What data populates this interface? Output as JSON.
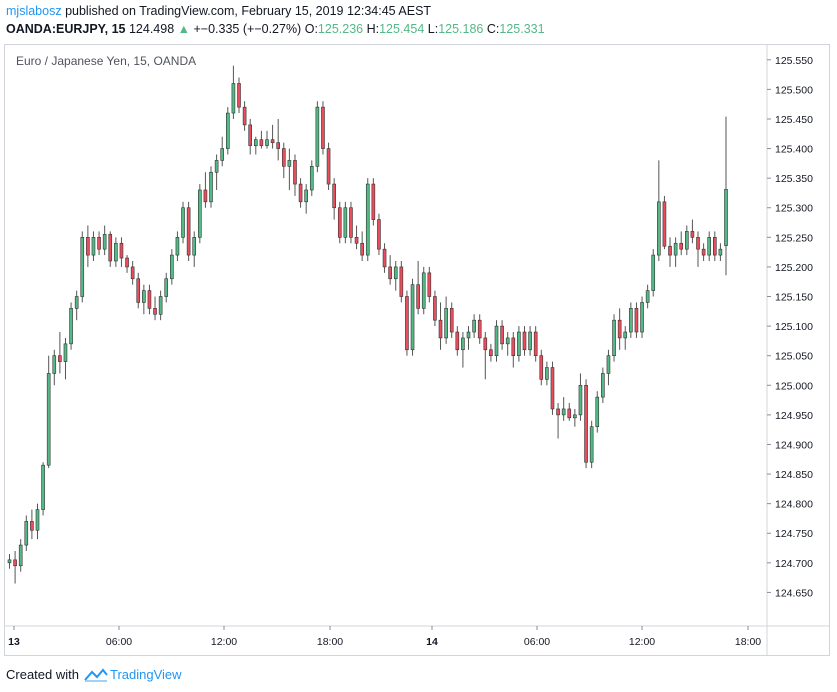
{
  "header": {
    "user": "mjslabosz",
    "published_text": "published on TradingView.com, February 15, 2019 12:34:45 AEST",
    "symbol": "OANDA:EURJPY, 15",
    "last": "124.498",
    "change": "+−0.335 (+−0.27%)",
    "o_label": "O:",
    "o_val": "125.236",
    "h_label": "H:",
    "h_val": "125.454",
    "l_label": "L:",
    "l_val": "125.186",
    "c_label": "C:",
    "c_val": "125.331"
  },
  "footer": {
    "created_with": "Created with",
    "brand": "TradingView"
  },
  "colors": {
    "up": "#53b987",
    "down": "#eb4d5c",
    "wick": "#555555",
    "axis": "#d1d4dc"
  },
  "chart_data": {
    "type": "candlestick",
    "title": "Euro / Japanese Yen, 15, OANDA",
    "ylim": [
      124.6,
      125.575
    ],
    "y_ticks": [
      "125.550",
      "125.500",
      "125.450",
      "125.400",
      "125.350",
      "125.300",
      "125.250",
      "125.200",
      "125.150",
      "125.100",
      "125.050",
      "125.000",
      "124.950",
      "124.900",
      "124.850",
      "124.800",
      "124.750",
      "124.700",
      "124.650"
    ],
    "x_ticks": [
      "13",
      "06:00",
      "12:00",
      "18:00",
      "14",
      "06:00",
      "12:00",
      "18:00"
    ],
    "candles": [
      [
        124.7,
        124.715,
        124.69,
        124.705
      ],
      [
        124.705,
        124.72,
        124.665,
        124.695
      ],
      [
        124.695,
        124.74,
        124.685,
        124.73
      ],
      [
        124.73,
        124.78,
        124.72,
        124.77
      ],
      [
        124.77,
        124.79,
        124.74,
        124.755
      ],
      [
        124.755,
        124.8,
        124.74,
        124.79
      ],
      [
        124.79,
        124.87,
        124.78,
        124.865
      ],
      [
        124.865,
        125.05,
        124.86,
        125.02
      ],
      [
        125.02,
        125.06,
        125.0,
        125.05
      ],
      [
        125.05,
        125.09,
        125.02,
        125.04
      ],
      [
        125.04,
        125.08,
        125.01,
        125.07
      ],
      [
        125.07,
        125.14,
        125.06,
        125.13
      ],
      [
        125.13,
        125.16,
        125.11,
        125.15
      ],
      [
        125.15,
        125.26,
        125.14,
        125.25
      ],
      [
        125.25,
        125.27,
        125.2,
        125.22
      ],
      [
        125.22,
        125.26,
        125.21,
        125.25
      ],
      [
        125.25,
        125.26,
        125.22,
        125.23
      ],
      [
        125.23,
        125.27,
        125.22,
        125.255
      ],
      [
        125.255,
        125.26,
        125.2,
        125.21
      ],
      [
        125.21,
        125.25,
        125.2,
        125.24
      ],
      [
        125.24,
        125.25,
        125.2,
        125.215
      ],
      [
        125.215,
        125.22,
        125.19,
        125.2
      ],
      [
        125.2,
        125.21,
        125.17,
        125.18
      ],
      [
        125.18,
        125.19,
        125.13,
        125.14
      ],
      [
        125.14,
        125.17,
        125.12,
        125.16
      ],
      [
        125.16,
        125.17,
        125.12,
        125.13
      ],
      [
        125.13,
        125.15,
        125.11,
        125.12
      ],
      [
        125.12,
        125.16,
        125.11,
        125.15
      ],
      [
        125.15,
        125.19,
        125.14,
        125.18
      ],
      [
        125.18,
        125.23,
        125.17,
        125.22
      ],
      [
        125.22,
        125.26,
        125.21,
        125.25
      ],
      [
        125.25,
        125.31,
        125.24,
        125.3
      ],
      [
        125.3,
        125.31,
        125.21,
        125.22
      ],
      [
        125.22,
        125.26,
        125.2,
        125.25
      ],
      [
        125.25,
        125.34,
        125.24,
        125.33
      ],
      [
        125.33,
        125.36,
        125.3,
        125.31
      ],
      [
        125.31,
        125.37,
        125.3,
        125.36
      ],
      [
        125.36,
        125.39,
        125.33,
        125.38
      ],
      [
        125.38,
        125.42,
        125.37,
        125.4
      ],
      [
        125.4,
        125.47,
        125.39,
        125.46
      ],
      [
        125.46,
        125.54,
        125.45,
        125.51
      ],
      [
        125.51,
        125.52,
        125.46,
        125.47
      ],
      [
        125.47,
        125.48,
        125.43,
        125.44
      ],
      [
        125.44,
        125.45,
        125.39,
        125.405
      ],
      [
        125.405,
        125.42,
        125.39,
        125.415
      ],
      [
        125.415,
        125.43,
        125.4,
        125.405
      ],
      [
        125.405,
        125.43,
        125.4,
        125.415
      ],
      [
        125.415,
        125.44,
        125.4,
        125.41
      ],
      [
        125.41,
        125.45,
        125.38,
        125.4
      ],
      [
        125.4,
        125.41,
        125.35,
        125.37
      ],
      [
        125.37,
        125.4,
        125.33,
        125.38
      ],
      [
        125.38,
        125.39,
        125.32,
        125.34
      ],
      [
        125.34,
        125.35,
        125.3,
        125.31
      ],
      [
        125.31,
        125.34,
        125.29,
        125.33
      ],
      [
        125.33,
        125.38,
        125.32,
        125.37
      ],
      [
        125.37,
        125.48,
        125.36,
        125.47
      ],
      [
        125.47,
        125.48,
        125.39,
        125.4
      ],
      [
        125.4,
        125.41,
        125.33,
        125.34
      ],
      [
        125.34,
        125.35,
        125.28,
        125.3
      ],
      [
        125.3,
        125.31,
        125.24,
        125.25
      ],
      [
        125.25,
        125.31,
        125.24,
        125.3
      ],
      [
        125.3,
        125.31,
        125.24,
        125.25
      ],
      [
        125.25,
        125.27,
        125.23,
        125.24
      ],
      [
        125.24,
        125.26,
        125.21,
        125.22
      ],
      [
        125.22,
        125.35,
        125.21,
        125.34
      ],
      [
        125.34,
        125.35,
        125.27,
        125.28
      ],
      [
        125.28,
        125.29,
        125.22,
        125.23
      ],
      [
        125.23,
        125.24,
        125.19,
        125.2
      ],
      [
        125.2,
        125.22,
        125.17,
        125.18
      ],
      [
        125.18,
        125.21,
        125.16,
        125.2
      ],
      [
        125.2,
        125.21,
        125.14,
        125.15
      ],
      [
        125.15,
        125.16,
        125.05,
        125.06
      ],
      [
        125.06,
        125.18,
        125.05,
        125.17
      ],
      [
        125.17,
        125.21,
        125.12,
        125.13
      ],
      [
        125.13,
        125.2,
        125.12,
        125.19
      ],
      [
        125.19,
        125.2,
        125.14,
        125.15
      ],
      [
        125.15,
        125.16,
        125.1,
        125.11
      ],
      [
        125.11,
        125.14,
        125.06,
        125.08
      ],
      [
        125.08,
        125.15,
        125.07,
        125.13
      ],
      [
        125.13,
        125.14,
        125.08,
        125.09
      ],
      [
        125.09,
        125.1,
        125.05,
        125.06
      ],
      [
        125.06,
        125.09,
        125.03,
        125.08
      ],
      [
        125.08,
        125.1,
        125.06,
        125.09
      ],
      [
        125.09,
        125.12,
        125.08,
        125.11
      ],
      [
        125.11,
        125.12,
        125.07,
        125.08
      ],
      [
        125.08,
        125.09,
        125.01,
        125.06
      ],
      [
        125.06,
        125.07,
        125.04,
        125.05
      ],
      [
        125.05,
        125.11,
        125.04,
        125.1
      ],
      [
        125.1,
        125.11,
        125.06,
        125.07
      ],
      [
        125.07,
        125.09,
        125.05,
        125.08
      ],
      [
        125.08,
        125.09,
        125.03,
        125.05
      ],
      [
        125.05,
        125.1,
        125.04,
        125.09
      ],
      [
        125.09,
        125.1,
        125.05,
        125.06
      ],
      [
        125.06,
        125.1,
        125.05,
        125.09
      ],
      [
        125.09,
        125.1,
        125.04,
        125.05
      ],
      [
        125.05,
        125.06,
        125.0,
        125.01
      ],
      [
        125.01,
        125.04,
        125.0,
        125.03
      ],
      [
        125.03,
        125.04,
        124.95,
        124.96
      ],
      [
        124.96,
        124.97,
        124.91,
        124.95
      ],
      [
        124.95,
        124.98,
        124.94,
        124.96
      ],
      [
        124.96,
        124.97,
        124.94,
        124.945
      ],
      [
        124.945,
        124.96,
        124.93,
        124.95
      ],
      [
        124.95,
        125.02,
        124.94,
        125.0
      ],
      [
        125.0,
        125.01,
        124.86,
        124.87
      ],
      [
        124.87,
        124.94,
        124.86,
        124.93
      ],
      [
        124.93,
        124.99,
        124.92,
        124.98
      ],
      [
        124.98,
        125.03,
        124.97,
        125.02
      ],
      [
        125.02,
        125.06,
        125.0,
        125.05
      ],
      [
        125.05,
        125.12,
        125.04,
        125.11
      ],
      [
        125.11,
        125.13,
        125.06,
        125.08
      ],
      [
        125.08,
        125.1,
        125.06,
        125.09
      ],
      [
        125.09,
        125.14,
        125.08,
        125.13
      ],
      [
        125.13,
        125.14,
        125.08,
        125.09
      ],
      [
        125.09,
        125.15,
        125.08,
        125.14
      ],
      [
        125.14,
        125.17,
        125.13,
        125.16
      ],
      [
        125.16,
        125.23,
        125.15,
        125.22
      ],
      [
        125.22,
        125.38,
        125.21,
        125.31
      ],
      [
        125.31,
        125.32,
        125.23,
        125.235
      ],
      [
        125.235,
        125.25,
        125.2,
        125.22
      ],
      [
        125.22,
        125.25,
        125.2,
        125.24
      ],
      [
        125.24,
        125.26,
        125.22,
        125.23
      ],
      [
        125.23,
        125.27,
        125.22,
        125.26
      ],
      [
        125.26,
        125.28,
        125.24,
        125.25
      ],
      [
        125.25,
        125.26,
        125.2,
        125.23
      ],
      [
        125.23,
        125.24,
        125.21,
        125.22
      ],
      [
        125.22,
        125.26,
        125.21,
        125.25
      ],
      [
        125.25,
        125.26,
        125.21,
        125.22
      ],
      [
        125.22,
        125.24,
        125.21,
        125.23
      ],
      [
        125.236,
        125.454,
        125.186,
        125.331
      ]
    ]
  }
}
